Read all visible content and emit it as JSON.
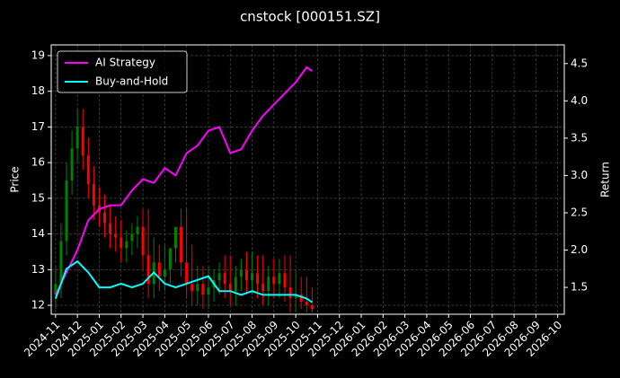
{
  "chart_data": {
    "type": "candlestick",
    "title": "cnstock [000151.SZ]",
    "ylabel": "Price",
    "y2label": "Return",
    "xlim": [
      -0.2,
      23.3
    ],
    "ylim": [
      11.75,
      19.3
    ],
    "y2lim": [
      1.14,
      4.75
    ],
    "grid": true,
    "legend": "upper left",
    "xticks": [
      {
        "value": 0,
        "label": "2024-11"
      },
      {
        "value": 1,
        "label": "2024-12"
      },
      {
        "value": 2,
        "label": "2025-01"
      },
      {
        "value": 3,
        "label": "2025-02"
      },
      {
        "value": 4,
        "label": "2025-03"
      },
      {
        "value": 5,
        "label": "2025-04"
      },
      {
        "value": 6,
        "label": "2025-05"
      },
      {
        "value": 7,
        "label": "2025-06"
      },
      {
        "value": 8,
        "label": "2025-07"
      },
      {
        "value": 9,
        "label": "2025-08"
      },
      {
        "value": 10,
        "label": "2025-09"
      },
      {
        "value": 11,
        "label": "2025-10"
      },
      {
        "value": 12,
        "label": "2025-11"
      },
      {
        "value": 13,
        "label": "2025-12"
      },
      {
        "value": 14,
        "label": "2026-01"
      },
      {
        "value": 15,
        "label": "2026-02"
      },
      {
        "value": 16,
        "label": "2026-03"
      },
      {
        "value": 17,
        "label": "2026-04"
      },
      {
        "value": 18,
        "label": "2026-05"
      },
      {
        "value": 19,
        "label": "2026-06"
      },
      {
        "value": 20,
        "label": "2026-07"
      },
      {
        "value": 21,
        "label": "2026-08"
      },
      {
        "value": 22,
        "label": "2026-09"
      },
      {
        "value": 23,
        "label": "2026-10"
      }
    ],
    "yticks": [
      12,
      13,
      14,
      15,
      16,
      17,
      18,
      19
    ],
    "y2ticks": [
      1.5,
      {
        "value": 2,
        "label": "2.0"
      },
      2.5,
      {
        "value": 3,
        "label": "3.0"
      },
      3.5,
      {
        "value": 4,
        "label": "4.0"
      },
      4.5
    ],
    "candles": {
      "up_color": "#008000",
      "down_color": "#ff0000",
      "x": [
        0,
        0.25,
        0.5,
        0.75,
        1,
        1.25,
        1.5,
        1.75,
        2,
        2.25,
        2.5,
        2.75,
        3,
        3.25,
        3.5,
        3.75,
        4,
        4.25,
        4.5,
        4.75,
        5,
        5.25,
        5.5,
        5.75,
        6,
        6.25,
        6.5,
        6.75,
        7,
        7.25,
        7.5,
        7.75,
        8,
        8.25,
        8.5,
        8.75,
        9,
        9.25,
        9.5,
        9.75,
        10,
        10.25,
        10.5,
        10.75,
        11,
        11.25,
        11.5,
        11.75
      ],
      "open": [
        12.3,
        12.6,
        13.8,
        15.5,
        16.4,
        17.0,
        16.2,
        15.4,
        14.8,
        14.6,
        14.3,
        14.0,
        13.9,
        13.6,
        13.8,
        14.0,
        14.2,
        13.4,
        12.6,
        13.2,
        12.8,
        13.0,
        13.6,
        14.2,
        13.2,
        12.6,
        12.4,
        12.6,
        12.3,
        12.5,
        12.7,
        12.9,
        12.6,
        12.4,
        12.8,
        13.0,
        12.7,
        12.9,
        12.6,
        12.4,
        12.8,
        12.6,
        12.9,
        12.5,
        12.2,
        12.3,
        12.1,
        12.0
      ],
      "high": [
        13.1,
        14.3,
        16.0,
        16.9,
        17.5,
        17.5,
        16.7,
        15.9,
        15.3,
        15.1,
        14.8,
        14.5,
        14.4,
        14.1,
        14.3,
        14.5,
        14.7,
        14.7,
        13.9,
        13.7,
        13.7,
        13.5,
        14.1,
        14.7,
        14.7,
        13.7,
        13.1,
        13.1,
        13.1,
        13.0,
        13.2,
        13.4,
        13.4,
        13.1,
        13.3,
        13.5,
        13.5,
        13.4,
        13.4,
        13.1,
        13.3,
        13.3,
        13.4,
        13.4,
        13.0,
        12.8,
        12.8,
        12.5
      ],
      "low": [
        11.9,
        12.2,
        13.4,
        15.1,
        16.0,
        15.8,
        15.0,
        14.4,
        14.2,
        13.9,
        13.6,
        13.5,
        13.2,
        13.2,
        13.4,
        13.6,
        13.0,
        12.2,
        12.2,
        12.4,
        12.4,
        12.6,
        13.2,
        12.8,
        12.2,
        12.0,
        12.0,
        11.9,
        11.9,
        12.1,
        12.3,
        12.2,
        12.0,
        12.0,
        12.4,
        12.3,
        12.3,
        12.2,
        12.0,
        12.0,
        12.2,
        12.2,
        12.1,
        11.8,
        11.8,
        11.9,
        11.8,
        11.8
      ],
      "close": [
        12.6,
        13.8,
        15.5,
        16.4,
        17.0,
        16.2,
        15.4,
        14.8,
        14.6,
        14.3,
        14.0,
        13.9,
        13.6,
        13.8,
        14.0,
        14.2,
        13.4,
        12.6,
        13.2,
        12.8,
        13.0,
        13.6,
        14.2,
        13.2,
        12.6,
        12.4,
        12.6,
        12.3,
        12.5,
        12.7,
        12.9,
        12.6,
        12.4,
        12.8,
        13.0,
        12.7,
        12.9,
        12.6,
        12.4,
        12.8,
        12.6,
        12.9,
        12.5,
        12.2,
        12.3,
        12.1,
        12.0,
        11.9
      ]
    },
    "series": [
      {
        "name": "AI Strategy",
        "color": "#ff00ff",
        "axis": "y2",
        "x": [
          0,
          0.5,
          1,
          1.5,
          2,
          2.5,
          3,
          3.5,
          4,
          4.5,
          5,
          5.5,
          6,
          6.5,
          7,
          7.5,
          8,
          8.5,
          9,
          9.5,
          10,
          10.5,
          11,
          11.5,
          11.75
        ],
        "values": [
          1.4,
          1.7,
          2.0,
          2.4,
          2.55,
          2.6,
          2.6,
          2.8,
          2.95,
          2.9,
          3.1,
          3.0,
          3.3,
          3.4,
          3.6,
          3.65,
          3.3,
          3.35,
          3.6,
          3.8,
          3.95,
          4.1,
          4.25,
          4.45,
          4.4
        ]
      },
      {
        "name": "Buy-and-Hold",
        "color": "#00ffff",
        "axis": "y2",
        "x": [
          0,
          0.5,
          1,
          1.5,
          2,
          2.5,
          3,
          3.5,
          4,
          4.5,
          5,
          5.5,
          6,
          6.5,
          7,
          7.5,
          8,
          8.5,
          9,
          9.5,
          10,
          10.5,
          11,
          11.5,
          11.75
        ],
        "values": [
          1.35,
          1.75,
          1.85,
          1.7,
          1.5,
          1.5,
          1.55,
          1.5,
          1.55,
          1.7,
          1.55,
          1.5,
          1.55,
          1.6,
          1.65,
          1.45,
          1.45,
          1.4,
          1.45,
          1.4,
          1.4,
          1.4,
          1.4,
          1.35,
          1.3
        ]
      }
    ]
  }
}
